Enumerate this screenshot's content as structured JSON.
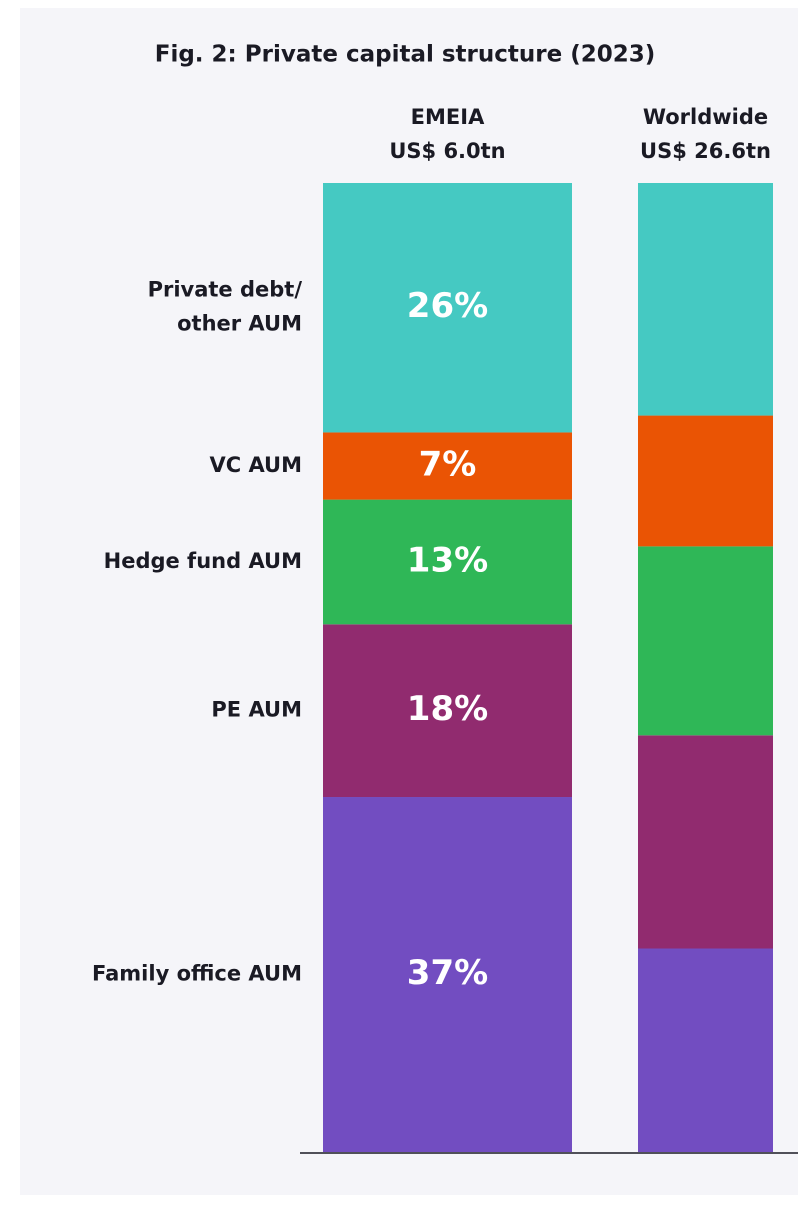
{
  "chart_data": {
    "type": "stacked_bar",
    "title": "Fig. 2: Private capital structure (2023)",
    "categories": [
      "EMEIA",
      "Worldwide"
    ],
    "category_labels": [
      "US$ 6.0tn",
      "US$ 26.6tn"
    ],
    "series": [
      {
        "name": "Family office AUM",
        "color": "#724dc1",
        "values": [
          37,
          21
        ],
        "value_labels": [
          "37%",
          null
        ]
      },
      {
        "name": "PE AUM",
        "color": "#912b6f",
        "values": [
          18,
          22
        ],
        "value_labels": [
          "18%",
          null
        ]
      },
      {
        "name": "Hedge fund AUM",
        "color": "#2fb757",
        "values": [
          13,
          19.5
        ],
        "value_labels": [
          "13%",
          null
        ]
      },
      {
        "name": "VC AUM",
        "color": "#ea5404",
        "values": [
          7,
          13.5
        ],
        "value_labels": [
          "7%",
          null
        ]
      },
      {
        "name": "Private debt/ other AUM",
        "color": "#45c9c2",
        "values": [
          26,
          24
        ],
        "value_labels": [
          "26%",
          null
        ]
      }
    ]
  }
}
